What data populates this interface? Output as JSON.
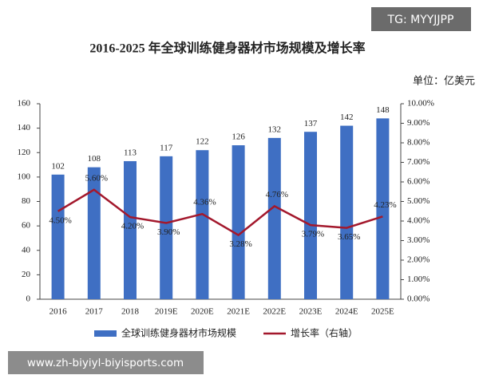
{
  "watermark_top": "TG: MYYJJPP",
  "watermark_bottom": "www.zh-biyiyl-biyisports.com",
  "chart_data": {
    "type": "bar",
    "title": "2016-2025 年全球训练健身器材市场规模及增长率",
    "unit_label": "单位：亿美元",
    "categories": [
      "2016",
      "2017",
      "2018",
      "2019E",
      "2020E",
      "2021E",
      "2022E",
      "2023E",
      "2024E",
      "2025E"
    ],
    "series": [
      {
        "name": "全球训练健身器材市场规模",
        "type": "bar",
        "color": "#3f6fc3",
        "values": [
          102,
          108,
          113,
          117,
          122,
          126,
          132,
          137,
          142,
          148
        ]
      },
      {
        "name": "增长率（右轴）",
        "type": "line",
        "axis": "y2",
        "color": "#a3182c",
        "values": [
          4.5,
          5.6,
          4.2,
          3.9,
          4.36,
          3.28,
          4.76,
          3.79,
          3.65,
          4.23
        ],
        "value_labels": [
          "4.50%",
          "5.60%",
          "4.20%",
          "3.90%",
          "4.36%",
          "3.28%",
          "4.76%",
          "3.79%",
          "3.65%",
          "4.23%"
        ]
      }
    ],
    "ylim": [
      0,
      160
    ],
    "yticks": [
      0,
      20,
      40,
      60,
      80,
      100,
      120,
      140,
      160
    ],
    "y2lim": [
      0,
      10
    ],
    "y2ticks": [
      {
        "value": 0,
        "label": "0.00%"
      },
      {
        "value": 1,
        "label": "1.00%"
      },
      {
        "value": 2,
        "label": "2.00%"
      },
      {
        "value": 3,
        "label": "3.00%"
      },
      {
        "value": 4,
        "label": "4.00%"
      },
      {
        "value": 5,
        "label": "5.00%"
      },
      {
        "value": 6,
        "label": "6.00%"
      },
      {
        "value": 7,
        "label": "7.00%"
      },
      {
        "value": 8,
        "label": "8.00%"
      },
      {
        "value": 9,
        "label": "9.00%"
      },
      {
        "value": 10,
        "label": "10.00%"
      }
    ],
    "grid": false,
    "legend": "bottom"
  }
}
